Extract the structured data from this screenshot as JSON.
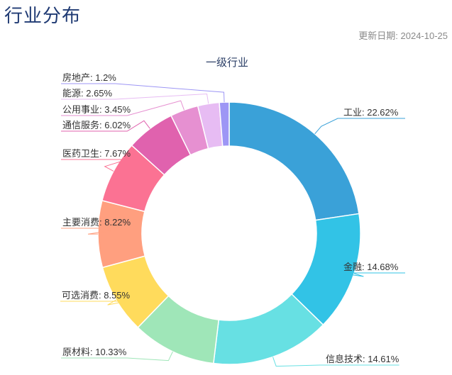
{
  "page": {
    "title": "行业分布",
    "update_label": "更新日期:",
    "update_date": "2024-10-25"
  },
  "chart_data": {
    "type": "pie",
    "variant": "donut",
    "title": "一级行业",
    "categories": [
      "工业",
      "金融",
      "信息技术",
      "原材料",
      "可选消费",
      "主要消费",
      "医药卫生",
      "通信服务",
      "公用事业",
      "能源",
      "房地产"
    ],
    "values": [
      22.62,
      14.68,
      14.61,
      10.33,
      8.55,
      8.22,
      7.67,
      6.02,
      3.45,
      2.65,
      1.2
    ],
    "unit": "%",
    "labels": [
      "工业: 22.62%",
      "金融: 14.68%",
      "信息技术: 14.61%",
      "原材料: 10.33%",
      "可选消费: 8.55%",
      "主要消费: 8.22%",
      "医药卫生: 7.67%",
      "通信服务: 6.02%",
      "公用事业: 3.45%",
      "能源: 2.65%",
      "房地产: 1.2%"
    ],
    "colors": [
      "#3aa1d8",
      "#32c3e6",
      "#67e0e3",
      "#9fe6b8",
      "#ffdb5c",
      "#ff9f7f",
      "#fb7293",
      "#e062ae",
      "#e690d1",
      "#e7bcf3",
      "#9d96f5"
    ],
    "legend": "none"
  }
}
